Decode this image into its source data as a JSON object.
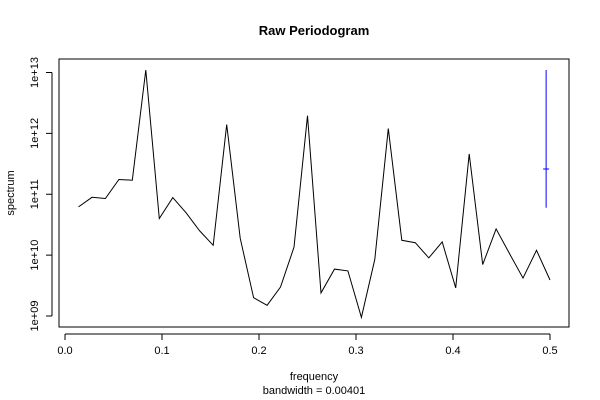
{
  "chart_data": {
    "type": "line",
    "title": "Raw Periodogram",
    "xlabel": "frequency",
    "sublabel": "bandwidth = 0.00401",
    "ylabel": "spectrum",
    "y_scale": "log",
    "xlim": [
      0.0,
      0.5
    ],
    "ylim": [
      600000000.0,
      17000000000000.0
    ],
    "x_ticks": [
      0.0,
      0.1,
      0.2,
      0.3,
      0.4,
      0.5
    ],
    "x_tick_labels": [
      "0.0",
      "0.1",
      "0.2",
      "0.3",
      "0.4",
      "0.5"
    ],
    "y_ticks": [
      1000000000.0,
      10000000000.0,
      100000000000.0,
      1000000000000.0,
      10000000000000.0
    ],
    "y_tick_labels": [
      "1e+09",
      "1e+10",
      "1e+11",
      "1e+12",
      "1e+13"
    ],
    "grid": false,
    "line_color": "#000000",
    "ci_color": "#0000ff",
    "series": [
      {
        "x": [
          0.0139,
          0.0278,
          0.0417,
          0.0556,
          0.0694,
          0.0833,
          0.0972,
          0.1111,
          0.125,
          0.1389,
          0.1528,
          0.1667,
          0.1806,
          0.1944,
          0.2083,
          0.2222,
          0.2361,
          0.25,
          0.2639,
          0.2778,
          0.2917,
          0.3056,
          0.3194,
          0.3333,
          0.3472,
          0.3611,
          0.375,
          0.3889,
          0.4028,
          0.4167,
          0.4306,
          0.4444,
          0.4583,
          0.4722,
          0.4861,
          0.5
        ],
        "values": [
          62000000000.0,
          89000000000.0,
          85000000000.0,
          175000000000.0,
          170000000000.0,
          11000000000000.0,
          40000000000.0,
          88000000000.0,
          49000000000.0,
          25000000000.0,
          14500000000.0,
          1400000000000.0,
          19000000000.0,
          2000000000.0,
          1500000000.0,
          3000000000.0,
          13500000000.0,
          1950000000000.0,
          2400000000.0,
          5900000000.0,
          5500000000.0,
          950000000.0,
          8500000000.0,
          1200000000000.0,
          17500000000.0,
          16000000000.0,
          9000000000.0,
          16500000000.0,
          2900000000.0,
          460000000000.0,
          7000000000.0,
          27000000000.0,
          10500000000.0,
          4200000000.0,
          12000000000.0,
          3900000000.0
        ]
      }
    ],
    "ci_bar": {
      "x": 0.496,
      "center": 260000000000.0,
      "lower": 60000000000.0,
      "upper": 11000000000000.0
    }
  }
}
